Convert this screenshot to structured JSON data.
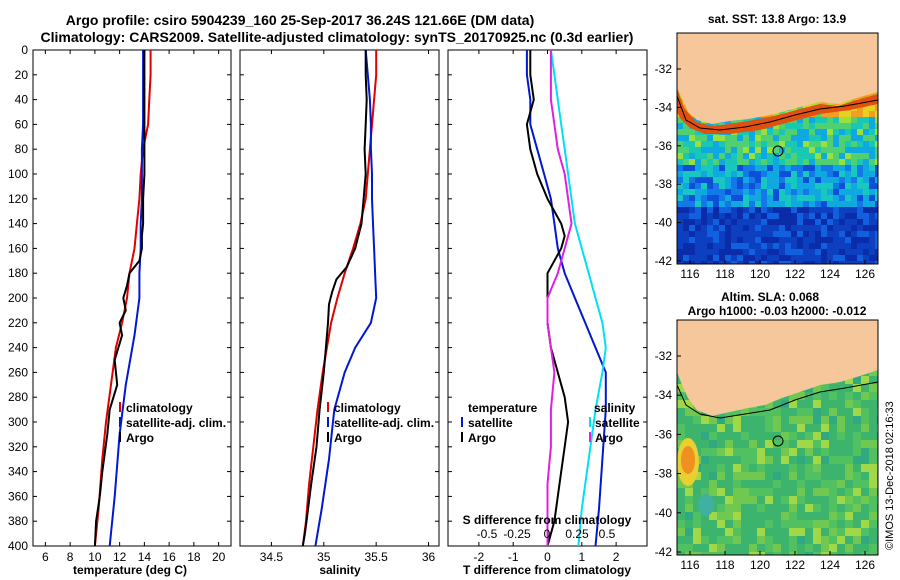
{
  "header": {
    "title_line1": "Argo profile: csiro 5904239_160 25-Sep-2017 36.24S 121.66E (DM data)",
    "title_line2": "Climatology: CARS2009. Satellite-adjusted climatology: synTS_20170925.nc (0.3d earlier)"
  },
  "colors": {
    "climatology": "#e00000",
    "satellite": "#0018d0",
    "argo": "#000000",
    "magenta": "#e020e0",
    "cyan": "#00e0f0",
    "land": "#f5c79a"
  },
  "chart_data": [
    {
      "type": "line",
      "id": "temperature",
      "xlabel": "temperature (deg C)",
      "xlim": [
        5,
        21
      ],
      "ylim": [
        0,
        400
      ],
      "y_inverted": true,
      "xticks": [
        6,
        8,
        10,
        12,
        14,
        16,
        18,
        20
      ],
      "yticks": [
        0,
        20,
        40,
        60,
        80,
        100,
        120,
        140,
        160,
        180,
        200,
        220,
        240,
        260,
        280,
        300,
        320,
        340,
        360,
        380,
        400
      ],
      "legend": [
        "climatology",
        "satellite-adj. clim.",
        "Argo"
      ],
      "series": [
        {
          "name": "climatology",
          "color": "#e00000",
          "x": [
            14.5,
            14.5,
            14.4,
            14.3,
            13.9,
            13.7,
            13.6,
            13.4,
            13.2,
            12.8,
            12.6,
            12.2,
            11.7,
            11.3,
            10.9,
            10.6,
            10.3,
            10.0
          ],
          "y": [
            0,
            20,
            40,
            60,
            80,
            100,
            120,
            140,
            160,
            180,
            200,
            220,
            240,
            270,
            300,
            330,
            370,
            400
          ]
        },
        {
          "name": "satellite-adj. clim.",
          "color": "#0018d0",
          "x": [
            13.9,
            13.9,
            13.9,
            13.9,
            13.8,
            13.8,
            13.8,
            13.7,
            13.7,
            13.6,
            13.6,
            13.2,
            12.5,
            12.0,
            11.6,
            11.2
          ],
          "y": [
            0,
            20,
            40,
            60,
            80,
            100,
            120,
            140,
            160,
            180,
            200,
            230,
            270,
            310,
            360,
            400
          ]
        },
        {
          "name": "Argo",
          "color": "#000000",
          "x": [
            14.0,
            14.0,
            14.0,
            14.0,
            14.0,
            14.0,
            13.9,
            13.9,
            13.8,
            13.8,
            13.6,
            12.8,
            12.6,
            12.3,
            12.5,
            12.0,
            12.2,
            11.6,
            11.8,
            11.2,
            11.0,
            10.6,
            10.4,
            10.1,
            10.0
          ],
          "y": [
            0,
            20,
            40,
            60,
            80,
            100,
            120,
            140,
            150,
            160,
            170,
            180,
            190,
            200,
            210,
            220,
            230,
            250,
            270,
            290,
            310,
            340,
            360,
            380,
            400
          ]
        }
      ]
    },
    {
      "type": "line",
      "id": "salinity",
      "xlabel": "salinity",
      "xlim": [
        34.2,
        36.1
      ],
      "ylim": [
        0,
        400
      ],
      "y_inverted": true,
      "xticks": [
        34.5,
        35,
        35.5,
        36
      ],
      "xtick_labels": [
        "34.5",
        "35",
        "35.5",
        "36"
      ],
      "legend": [
        "climatology",
        "satellite-adj. clim.",
        "Argo"
      ],
      "series": [
        {
          "name": "climatology",
          "color": "#e00000",
          "x": [
            35.5,
            35.5,
            35.48,
            35.46,
            35.44,
            35.42,
            35.4,
            35.35,
            35.28,
            35.2,
            35.13,
            35.07,
            35.03,
            34.99,
            34.94,
            34.9,
            34.86,
            34.83,
            34.8
          ],
          "y": [
            0,
            20,
            40,
            60,
            80,
            100,
            120,
            140,
            160,
            180,
            200,
            220,
            240,
            260,
            290,
            320,
            350,
            380,
            400
          ]
        },
        {
          "name": "satellite-adj. clim.",
          "color": "#0018d0",
          "x": [
            35.4,
            35.42,
            35.44,
            35.45,
            35.45,
            35.46,
            35.46,
            35.47,
            35.48,
            35.49,
            35.5,
            35.45,
            35.3,
            35.2,
            35.1,
            35.05,
            34.98,
            34.92
          ],
          "y": [
            0,
            20,
            40,
            60,
            80,
            100,
            120,
            140,
            160,
            180,
            200,
            220,
            240,
            260,
            290,
            330,
            370,
            400
          ]
        },
        {
          "name": "Argo",
          "color": "#000000",
          "x": [
            35.4,
            35.4,
            35.41,
            35.4,
            35.39,
            35.4,
            35.38,
            35.36,
            35.3,
            35.22,
            35.12,
            35.08,
            35.05,
            35.04,
            35.02,
            35.0,
            34.96,
            34.93,
            34.88,
            34.85,
            34.82,
            34.8
          ],
          "y": [
            0,
            20,
            40,
            60,
            80,
            100,
            120,
            140,
            160,
            175,
            185,
            195,
            205,
            220,
            240,
            260,
            290,
            320,
            350,
            370,
            390,
            400
          ]
        }
      ]
    },
    {
      "type": "line",
      "id": "difference",
      "xlabel": "T difference from climatology",
      "xlabel_top": "S difference from climatology",
      "xlim": [
        -2.9,
        2.9
      ],
      "ylim": [
        0,
        400
      ],
      "y_inverted": true,
      "xticks": [
        -2,
        -1,
        0,
        1,
        2
      ],
      "s_xticks": [
        -0.5,
        -0.25,
        0,
        0.25,
        0.5
      ],
      "s_xtick_labels": [
        "-0.5",
        "-0.25",
        "0",
        "0.25",
        "0.5"
      ],
      "legend_left_title": "temperature",
      "legend_right_title": "salinity",
      "legend_left": [
        "satellite",
        "Argo"
      ],
      "legend_right": [
        "satellite",
        "Argo"
      ],
      "series": [
        {
          "name": "T satellite",
          "color": "#0018d0",
          "x": [
            -0.6,
            -0.6,
            -0.5,
            -0.5,
            -0.3,
            -0.1,
            0.1,
            0.2,
            0.3,
            0.5,
            0.8,
            1.1,
            1.4,
            1.7,
            1.7,
            1.6,
            1.5,
            1.4
          ],
          "y": [
            0,
            20,
            40,
            60,
            80,
            100,
            120,
            140,
            160,
            180,
            200,
            220,
            240,
            260,
            290,
            330,
            370,
            400
          ]
        },
        {
          "name": "T Argo",
          "color": "#000000",
          "x": [
            -0.5,
            -0.5,
            -0.4,
            -0.6,
            -0.5,
            -0.3,
            0.0,
            0.4,
            0.5,
            0.4,
            0.0,
            0.0,
            0.0,
            0.1,
            0.3,
            0.5,
            0.6,
            0.5,
            0.4,
            0.3,
            0.2,
            0.1,
            0.0
          ],
          "y": [
            0,
            20,
            40,
            60,
            80,
            100,
            120,
            140,
            150,
            160,
            180,
            200,
            220,
            240,
            260,
            280,
            300,
            320,
            340,
            360,
            380,
            390,
            400
          ]
        },
        {
          "name": "S satellite",
          "color": "#00e0f0",
          "x": [
            0.1,
            0.2,
            0.3,
            0.4,
            0.5,
            0.6,
            0.7,
            0.8,
            1.0,
            1.2,
            1.4,
            1.6,
            1.7,
            1.6,
            1.4,
            1.2,
            1.0,
            0.9
          ],
          "y": [
            0,
            20,
            40,
            60,
            80,
            100,
            120,
            140,
            160,
            180,
            200,
            220,
            240,
            260,
            290,
            330,
            370,
            400
          ]
        },
        {
          "name": "S Argo",
          "color": "#e020e0",
          "x": [
            0.1,
            0.1,
            0.1,
            0.2,
            0.3,
            0.5,
            0.6,
            0.7,
            0.5,
            0.3,
            0.0,
            0.0,
            0.1,
            0.2,
            0.1,
            0.1,
            0.0,
            0.0,
            0.0
          ],
          "y": [
            0,
            20,
            40,
            60,
            80,
            100,
            120,
            140,
            160,
            180,
            200,
            220,
            240,
            260,
            290,
            320,
            350,
            380,
            400
          ]
        }
      ]
    }
  ],
  "maps": [
    {
      "id": "sst",
      "title_line1": "sat. SST: 13.8 Argo: 13.9",
      "title_line2": "",
      "lon_ticks": [
        "116",
        "118",
        "120",
        "122",
        "124",
        "126"
      ],
      "lat_ticks": [
        "-32",
        "-34",
        "-36",
        "-38",
        "-40",
        "-42"
      ]
    },
    {
      "id": "sla",
      "title_line1": "Altim. SLA: 0.068",
      "title_line2": "Argo h1000: -0.03 h2000: -0.012",
      "lon_ticks": [
        "116",
        "118",
        "120",
        "122",
        "124",
        "126"
      ],
      "lat_ticks": [
        "-32",
        "-34",
        "-36",
        "-38",
        "-40",
        "-42"
      ]
    }
  ],
  "footer": {
    "credit": "©IMOS 13-Dec-2018 02:16:33"
  }
}
